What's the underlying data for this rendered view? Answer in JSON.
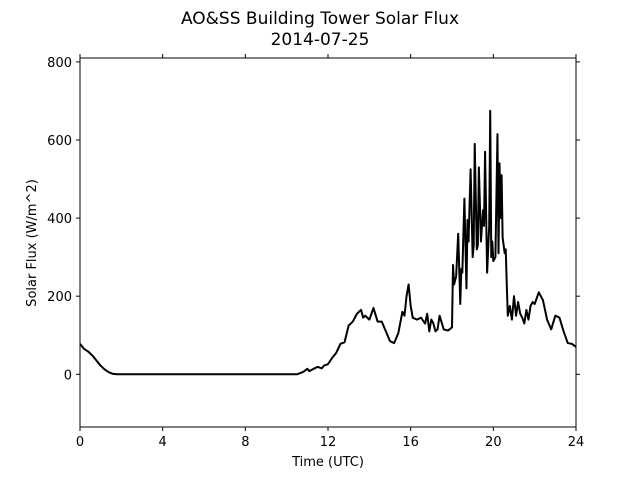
{
  "chart_data": {
    "type": "line",
    "title": "AO&SS Building Tower Solar Flux",
    "subtitle": "2014-07-25",
    "xlabel": "Time (UTC)",
    "ylabel": "Solar Flux (W/m^2)",
    "xlim": [
      0,
      24
    ],
    "ylim": [
      -135,
      810
    ],
    "xticks": [
      0,
      4,
      8,
      12,
      16,
      20,
      24
    ],
    "yticks": [
      0,
      200,
      400,
      600,
      800
    ],
    "grid": false,
    "legend": "none",
    "line_color": "#000000",
    "series": [
      {
        "x": [
          0,
          0.2,
          0.4,
          0.6,
          0.8,
          1.0,
          1.2,
          1.4,
          1.6,
          1.8,
          2.0,
          2.5,
          3,
          4,
          5,
          6,
          7,
          8,
          9,
          10,
          10.5,
          10.8,
          11.0,
          11.1,
          11.3,
          11.5,
          11.7,
          11.8,
          12.0,
          12.2,
          12.4,
          12.6,
          12.8,
          13.0,
          13.2,
          13.4,
          13.6,
          13.7,
          13.8,
          14.0,
          14.2,
          14.4,
          14.6,
          14.8,
          15.0,
          15.2,
          15.4,
          15.6,
          15.7,
          15.8,
          15.9,
          16.0,
          16.1,
          16.3,
          16.5,
          16.7,
          16.8,
          16.9,
          17.0,
          17.1,
          17.2,
          17.3,
          17.4,
          17.6,
          17.8,
          18.0,
          18.05,
          18.1,
          18.2,
          18.3,
          18.4,
          18.45,
          18.5,
          18.6,
          18.7,
          18.75,
          18.8,
          18.9,
          19.0,
          19.05,
          19.1,
          19.2,
          19.25,
          19.3,
          19.4,
          19.5,
          19.55,
          19.6,
          19.7,
          19.8,
          19.85,
          19.9,
          19.95,
          20.0,
          20.1,
          20.2,
          20.25,
          20.3,
          20.35,
          20.4,
          20.45,
          20.5,
          20.55,
          20.6,
          20.65,
          20.7,
          20.8,
          20.9,
          21.0,
          21.1,
          21.2,
          21.3,
          21.4,
          21.5,
          21.6,
          21.7,
          21.8,
          21.9,
          22.0,
          22.2,
          22.4,
          22.6,
          22.8,
          23.0,
          23.2,
          23.4,
          23.5,
          23.6,
          23.8,
          24.0
        ],
        "y": [
          78,
          65,
          58,
          48,
          35,
          22,
          12,
          5,
          1,
          0,
          0,
          0,
          0,
          0,
          0,
          0,
          0,
          0,
          0,
          0,
          0,
          6,
          14,
          8,
          14,
          19,
          15,
          22,
          26,
          42,
          55,
          78,
          82,
          125,
          135,
          155,
          165,
          145,
          150,
          140,
          170,
          135,
          135,
          110,
          85,
          80,
          105,
          160,
          150,
          200,
          230,
          175,
          145,
          140,
          145,
          130,
          155,
          110,
          140,
          130,
          110,
          115,
          150,
          115,
          112,
          120,
          280,
          230,
          250,
          360,
          180,
          270,
          260,
          450,
          220,
          395,
          340,
          525,
          300,
          330,
          590,
          320,
          330,
          530,
          340,
          420,
          380,
          570,
          260,
          380,
          675,
          300,
          340,
          290,
          300,
          615,
          310,
          540,
          400,
          510,
          350,
          330,
          310,
          320,
          230,
          150,
          175,
          140,
          200,
          150,
          185,
          155,
          145,
          130,
          165,
          140,
          175,
          185,
          180,
          210,
          190,
          140,
          115,
          150,
          145,
          110,
          95,
          80,
          78,
          70
        ]
      }
    ]
  }
}
